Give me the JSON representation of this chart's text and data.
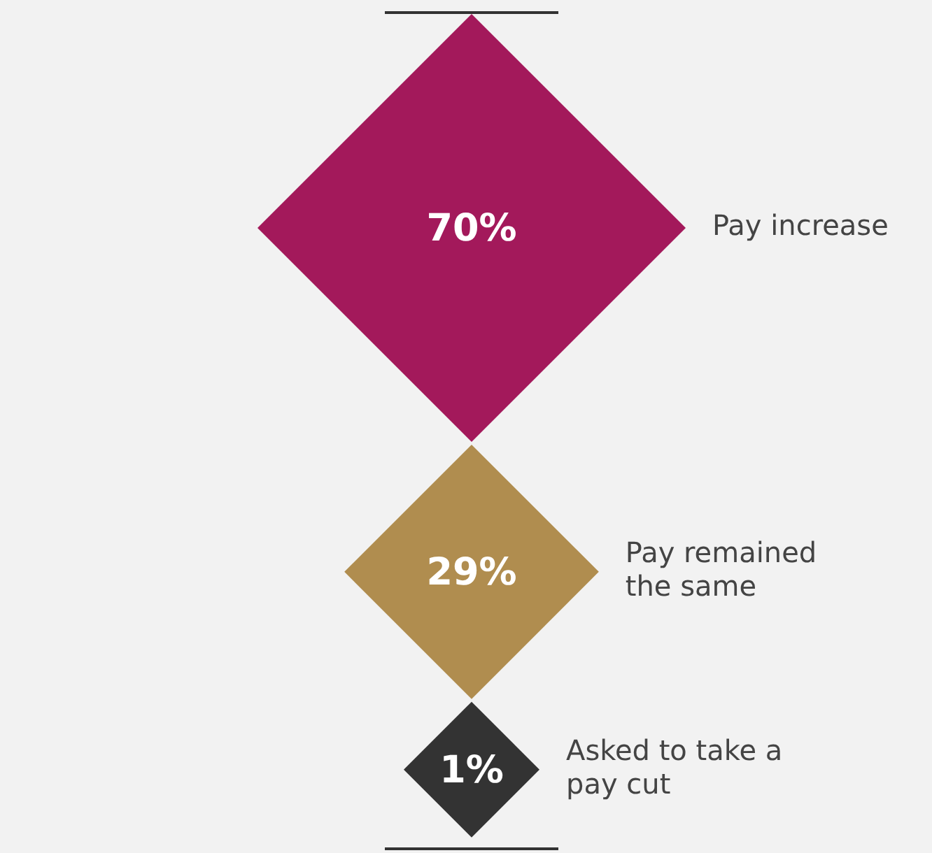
{
  "chart_data": {
    "type": "other",
    "categories": [
      "Pay increase",
      "Pay remained the same",
      "Asked to take a pay cut"
    ],
    "values": [
      70,
      29,
      1
    ],
    "colors": [
      "#a3195b",
      "#b08d4f",
      "#333333"
    ],
    "value_labels": [
      "70%",
      "29%",
      "1%"
    ]
  }
}
